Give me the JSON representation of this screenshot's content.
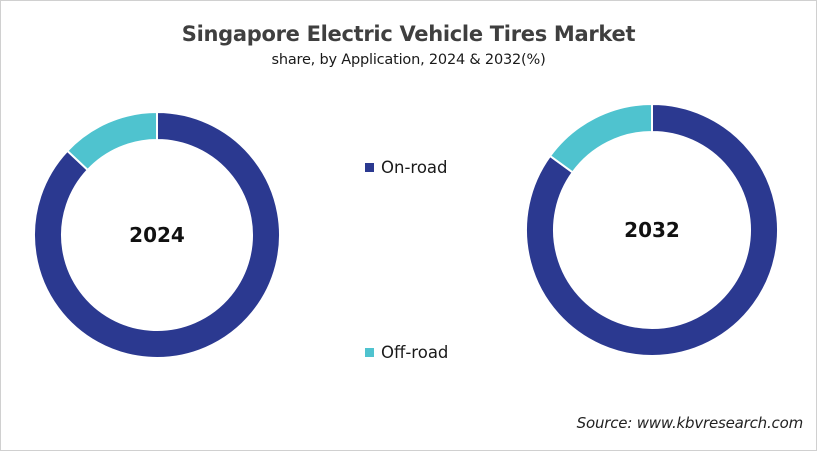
{
  "header": {
    "title": "Singapore Electric Vehicle Tires Market",
    "subtitle": "share, by Application, 2024 & 2032(%)"
  },
  "legend": {
    "items": [
      {
        "label": "On-road",
        "color": "#2b3990"
      },
      {
        "label": "Off-road",
        "color": "#4fc3cf"
      }
    ]
  },
  "footer": {
    "source": "Source: www.kbvresearch.com"
  },
  "chart_data": [
    {
      "type": "pie",
      "variant": "donut",
      "title": "2024",
      "center_label": "2024",
      "categories": [
        "On-road",
        "Off-road"
      ],
      "values": [
        87,
        13
      ],
      "colors": [
        "#2b3990",
        "#4fc3cf"
      ],
      "unit": "%"
    },
    {
      "type": "pie",
      "variant": "donut",
      "title": "2032",
      "center_label": "2032",
      "categories": [
        "On-road",
        "Off-road"
      ],
      "values": [
        85,
        15
      ],
      "colors": [
        "#2b3990",
        "#4fc3cf"
      ],
      "unit": "%"
    }
  ]
}
